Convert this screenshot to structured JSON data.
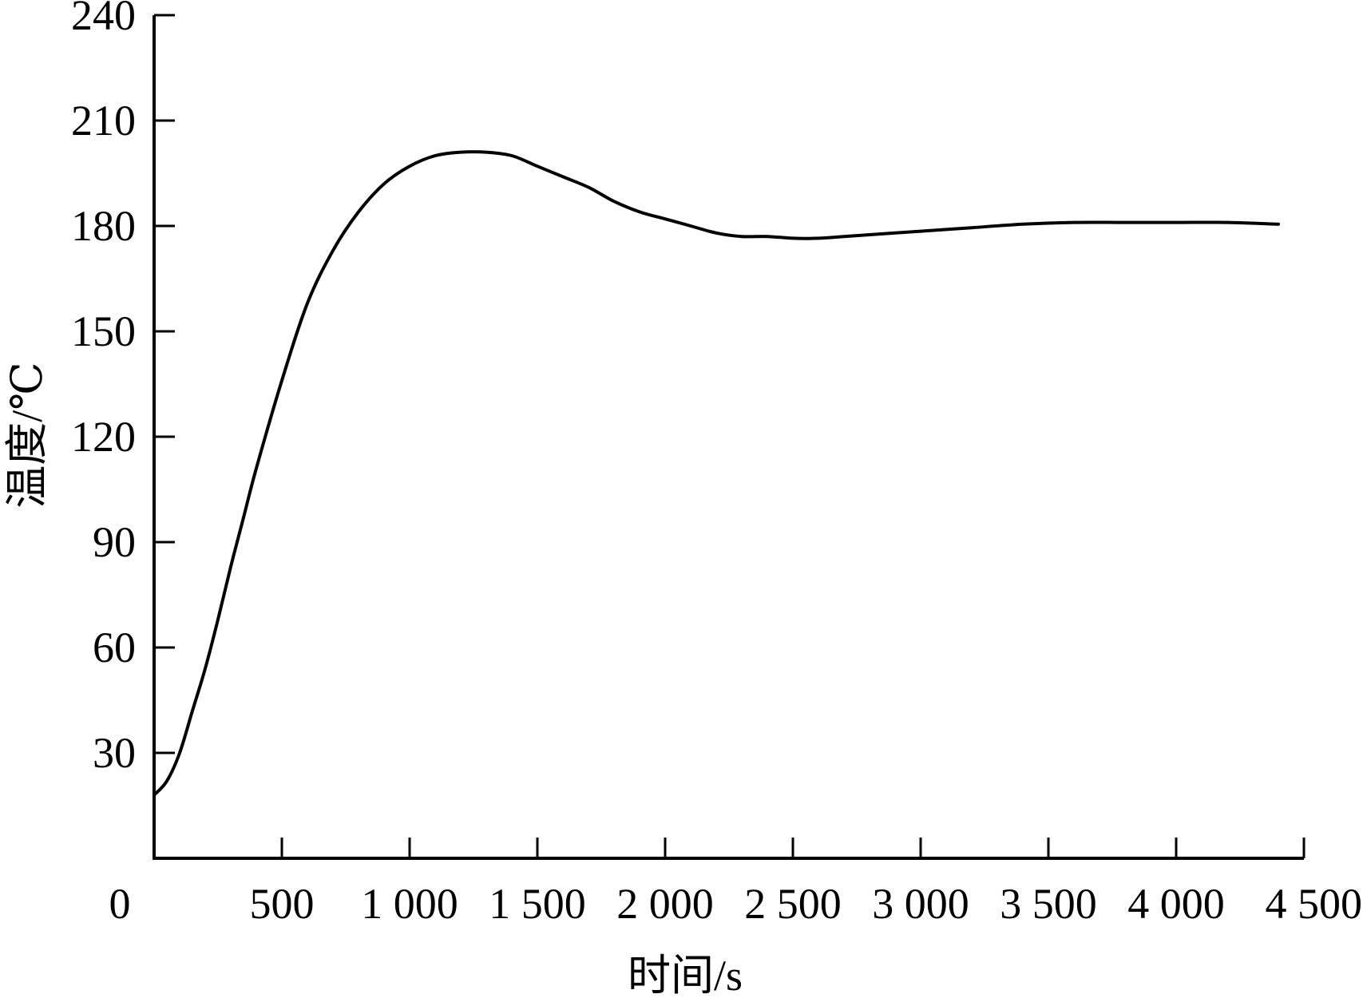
{
  "chart_data": {
    "type": "line",
    "title": "",
    "xlabel": "时间/s",
    "ylabel": "温度/℃",
    "xlim": [
      0,
      4500
    ],
    "ylim": [
      0,
      240
    ],
    "x_ticks": [
      0,
      500,
      1000,
      1500,
      2000,
      2500,
      3000,
      3500,
      4000,
      4500
    ],
    "x_tick_labels": [
      "0",
      "500",
      "1 000",
      "1 500",
      "2 000",
      "2 500",
      "3 000",
      "3 500",
      "4 000",
      "4 500"
    ],
    "y_ticks": [
      30,
      60,
      90,
      120,
      150,
      180,
      210,
      240
    ],
    "y_tick_labels": [
      "30",
      "60",
      "90",
      "120",
      "150",
      "180",
      "210",
      "240"
    ],
    "grid": false,
    "legend": "none",
    "series": [
      {
        "color": "#000000",
        "x": [
          0,
          50,
          100,
          150,
          200,
          250,
          300,
          350,
          400,
          500,
          600,
          700,
          800,
          900,
          1000,
          1100,
          1200,
          1300,
          1400,
          1500,
          1600,
          1700,
          1800,
          1900,
          2000,
          2100,
          2200,
          2300,
          2400,
          2500,
          2600,
          2700,
          2800,
          2900,
          3000,
          3200,
          3400,
          3600,
          3800,
          4000,
          4200,
          4400
        ],
        "y": [
          18,
          22,
          30,
          42,
          54,
          68,
          83,
          97,
          111,
          136,
          158,
          173,
          184,
          192,
          197,
          200,
          201,
          201,
          200,
          197,
          194,
          191,
          187,
          184,
          182,
          180,
          178,
          177,
          177,
          176.5,
          176.5,
          177,
          177.5,
          178,
          178.5,
          179.5,
          180.5,
          181,
          181,
          181,
          181,
          180.5
        ]
      }
    ]
  }
}
